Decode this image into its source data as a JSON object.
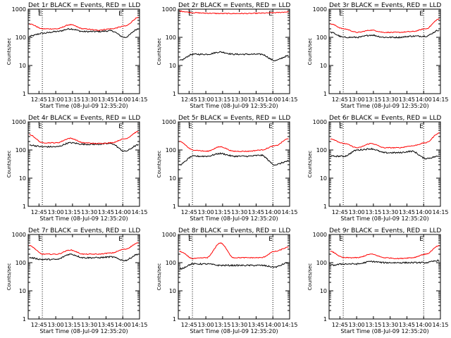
{
  "chart_data": {
    "type": "line",
    "layout": "3x3 grid of panels",
    "x_axis": {
      "tick_labels": [
        "12:45",
        "13:00",
        "13:15",
        "13:30",
        "13:45",
        "14:00",
        "14:15"
      ],
      "xlabel": "Start Time (08-Jul-09 12:35:20)"
    },
    "y_axis": {
      "ylabel": "Counts/sec",
      "scale": "log",
      "ylim": [
        1,
        1000
      ],
      "tick_labels": [
        "1",
        "10",
        "100",
        "1000"
      ]
    },
    "markers": {
      "label": "E",
      "times": [
        "12:48",
        "14:00"
      ],
      "line_style": "dotted"
    },
    "series_colors": {
      "events": "#000000",
      "lld": "#ff0000"
    },
    "panels": [
      {
        "title": "Det 1r BLACK = Events, RED = LLD",
        "events_values": [
          110,
          140,
          160,
          200,
          160,
          160,
          170,
          100,
          200
        ],
        "lld_values": [
          300,
          200,
          200,
          280,
          200,
          180,
          200,
          250,
          500
        ]
      },
      {
        "title": "Det 2r BLACK = Events, RED = LLD",
        "events_values": [
          15,
          25,
          25,
          30,
          25,
          25,
          25,
          15,
          22
        ],
        "lld_values": [
          850,
          750,
          720,
          700,
          700,
          700,
          720,
          750,
          800
        ]
      },
      {
        "title": "Det 3r BLACK = Events, RED = LLD",
        "events_values": [
          150,
          100,
          100,
          120,
          100,
          100,
          110,
          110,
          180
        ],
        "lld_values": [
          300,
          200,
          150,
          180,
          150,
          150,
          160,
          200,
          450
        ]
      },
      {
        "title": "Det 4r BLACK = Events, RED = LLD",
        "events_values": [
          150,
          130,
          130,
          180,
          160,
          160,
          170,
          90,
          150
        ],
        "lld_values": [
          350,
          180,
          180,
          260,
          180,
          170,
          180,
          250,
          450
        ]
      },
      {
        "title": "Det 5r BLACK = Events, RED = LLD",
        "events_values": [
          30,
          60,
          60,
          75,
          60,
          60,
          65,
          30,
          40
        ],
        "lld_values": [
          200,
          100,
          90,
          130,
          90,
          90,
          100,
          140,
          250
        ]
      },
      {
        "title": "Det 6r BLACK = Events, RED = LLD",
        "events_values": [
          60,
          60,
          100,
          110,
          80,
          80,
          90,
          50,
          60
        ],
        "lld_values": [
          250,
          170,
          120,
          170,
          120,
          120,
          140,
          180,
          400
        ]
      },
      {
        "title": "Det 7r BLACK = Events, RED = LLD",
        "events_values": [
          150,
          130,
          130,
          200,
          150,
          150,
          160,
          120,
          200
        ],
        "lld_values": [
          400,
          200,
          200,
          280,
          200,
          200,
          220,
          300,
          500
        ]
      },
      {
        "title": "Det 8r BLACK = Events, RED = LLD",
        "events_values": [
          60,
          90,
          90,
          80,
          80,
          80,
          80,
          70,
          100
        ],
        "lld_values": [
          250,
          140,
          150,
          500,
          150,
          150,
          150,
          250,
          350
        ]
      },
      {
        "title": "Det 9r BLACK = Events, RED = LLD",
        "events_values": [
          80,
          90,
          90,
          110,
          100,
          100,
          100,
          100,
          120
        ],
        "lld_values": [
          250,
          150,
          150,
          200,
          150,
          140,
          150,
          200,
          400
        ]
      }
    ]
  }
}
